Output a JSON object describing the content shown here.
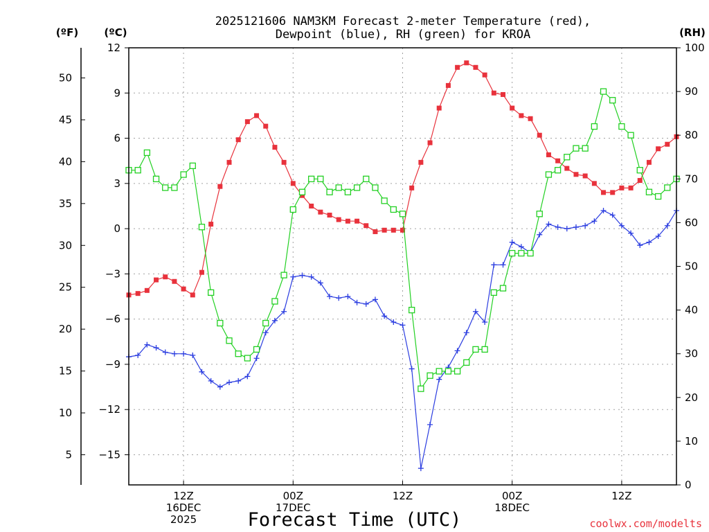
{
  "chart_data": {
    "type": "line",
    "title_line1": "2025121606 NAM3KM Forecast 2-meter Temperature (red),",
    "title_line2": "Dewpoint (blue), RH (green) for KROA",
    "xlabel": "Forecast Time (UTC)",
    "credit": "coolwx.com/modelts",
    "units": {
      "fahrenheit": "(ºF)",
      "celsius": "(ºC)",
      "rh": "(RH)"
    },
    "x_range_hours": [
      0,
      60
    ],
    "celsius_axis": {
      "range": [
        -17,
        12
      ],
      "ticks": [
        12,
        9,
        6,
        3,
        0,
        -3,
        -6,
        -9,
        -12,
        -15
      ],
      "tick_labels": [
        "12",
        "9",
        "6",
        "3",
        "0",
        "−3",
        "−6",
        "−9",
        "−12",
        "−15"
      ]
    },
    "fahrenheit_axis": {
      "ticks": [
        50,
        45,
        40,
        35,
        30,
        25,
        20,
        15,
        10,
        5
      ],
      "tick_labels": [
        "50",
        "45",
        "40",
        "35",
        "30",
        "25",
        "20",
        "15",
        "10",
        "5"
      ]
    },
    "rh_axis": {
      "range": [
        0,
        100
      ],
      "ticks": [
        100,
        90,
        80,
        70,
        60,
        50,
        40,
        30,
        20,
        10,
        0
      ],
      "tick_labels": [
        "100",
        "90",
        "80",
        "70",
        "60",
        "50",
        "40",
        "30",
        "20",
        "10",
        "0"
      ]
    },
    "x_ticks": [
      {
        "hour": 6,
        "lines": [
          "12Z",
          "16DEC",
          "2025"
        ]
      },
      {
        "hour": 18,
        "lines": [
          "00Z",
          "17DEC"
        ]
      },
      {
        "hour": 30,
        "lines": [
          "12Z"
        ]
      },
      {
        "hour": 42,
        "lines": [
          "00Z",
          "18DEC"
        ]
      },
      {
        "hour": 54,
        "lines": [
          "12Z"
        ]
      }
    ],
    "colors": {
      "temperature": "#e8323c",
      "dewpoint": "#2a3ce0",
      "rh": "#22d022",
      "grid": "#a0a0a0",
      "axis": "#000000"
    },
    "series": [
      {
        "name": "Temperature",
        "unit": "°C",
        "axis": "celsius",
        "marker": "filled-square",
        "x": [
          0,
          1,
          2,
          3,
          4,
          5,
          6,
          7,
          8,
          9,
          10,
          11,
          12,
          13,
          14,
          15,
          16,
          17,
          18,
          19,
          20,
          21,
          22,
          23,
          24,
          25,
          26,
          27,
          28,
          29,
          30,
          31,
          32,
          33,
          34,
          35,
          36,
          37,
          38,
          39,
          40,
          41,
          42,
          43,
          44,
          45,
          46,
          47,
          48,
          49,
          50,
          51,
          52,
          53,
          54,
          55,
          56,
          57,
          58,
          59,
          60
        ],
        "values": [
          -4.4,
          -4.3,
          -4.1,
          -3.4,
          -3.2,
          -3.5,
          -4.0,
          -4.4,
          -2.9,
          0.3,
          2.8,
          4.4,
          5.9,
          7.1,
          7.5,
          6.8,
          5.4,
          4.4,
          3.0,
          2.2,
          1.5,
          1.1,
          0.9,
          0.6,
          0.5,
          0.5,
          0.2,
          -0.2,
          -0.1,
          -0.1,
          -0.1,
          2.7,
          4.4,
          5.7,
          8.0,
          9.5,
          10.7,
          11.0,
          10.7,
          10.2,
          9.0,
          8.9,
          8.0,
          7.5,
          7.3,
          6.2,
          4.9,
          4.5,
          4.0,
          3.6,
          3.5,
          3.0,
          2.4,
          2.4,
          2.7,
          2.7,
          3.2,
          4.4,
          5.3,
          5.6,
          6.1
        ]
      },
      {
        "name": "Dewpoint",
        "unit": "°C",
        "axis": "celsius",
        "marker": "plus",
        "x": [
          0,
          1,
          2,
          3,
          4,
          5,
          6,
          7,
          8,
          9,
          10,
          11,
          12,
          13,
          14,
          15,
          16,
          17,
          18,
          19,
          20,
          21,
          22,
          23,
          24,
          25,
          26,
          27,
          28,
          29,
          30,
          31,
          32,
          33,
          34,
          35,
          36,
          37,
          38,
          39,
          40,
          41,
          42,
          43,
          44,
          45,
          46,
          47,
          48,
          49,
          50,
          51,
          52,
          53,
          54,
          55,
          56,
          57,
          58,
          59,
          60
        ],
        "values": [
          -8.5,
          -8.4,
          -7.7,
          -7.9,
          -8.2,
          -8.3,
          -8.3,
          -8.4,
          -9.5,
          -10.1,
          -10.5,
          -10.2,
          -10.1,
          -9.8,
          -8.6,
          -6.9,
          -6.1,
          -5.5,
          -3.2,
          -3.1,
          -3.2,
          -3.6,
          -4.5,
          -4.6,
          -4.5,
          -4.9,
          -5.0,
          -4.7,
          -5.8,
          -6.2,
          -6.4,
          -9.3,
          -15.9,
          -13.0,
          -10.0,
          -9.2,
          -8.1,
          -6.9,
          -5.5,
          -6.2,
          -2.4,
          -2.4,
          -0.9,
          -1.2,
          -1.6,
          -0.4,
          0.3,
          0.1,
          0.0,
          0.1,
          0.2,
          0.5,
          1.2,
          0.9,
          0.2,
          -0.3,
          -1.1,
          -0.9,
          -0.5,
          0.2,
          1.2
        ]
      },
      {
        "name": "RH",
        "unit": "%",
        "axis": "rh",
        "marker": "open-square",
        "x": [
          0,
          1,
          2,
          3,
          4,
          5,
          6,
          7,
          8,
          9,
          10,
          11,
          12,
          13,
          14,
          15,
          16,
          17,
          18,
          19,
          20,
          21,
          22,
          23,
          24,
          25,
          26,
          27,
          28,
          29,
          30,
          31,
          32,
          33,
          34,
          35,
          36,
          37,
          38,
          39,
          40,
          41,
          42,
          43,
          44,
          45,
          46,
          47,
          48,
          49,
          50,
          51,
          52,
          53,
          54,
          55,
          56,
          57,
          58,
          59,
          60
        ],
        "values": [
          72,
          72,
          76,
          70,
          68,
          68,
          71,
          73,
          59,
          44,
          37,
          33,
          30,
          29,
          31,
          37,
          42,
          48,
          63,
          67,
          70,
          70,
          67,
          68,
          67,
          68,
          70,
          68,
          65,
          63,
          62,
          40,
          22,
          25,
          26,
          26,
          26,
          28,
          31,
          31,
          44,
          45,
          53,
          53,
          53,
          62,
          71,
          72,
          75,
          77,
          77,
          82,
          90,
          88,
          82,
          80,
          72,
          67,
          66,
          68,
          70
        ]
      }
    ]
  }
}
